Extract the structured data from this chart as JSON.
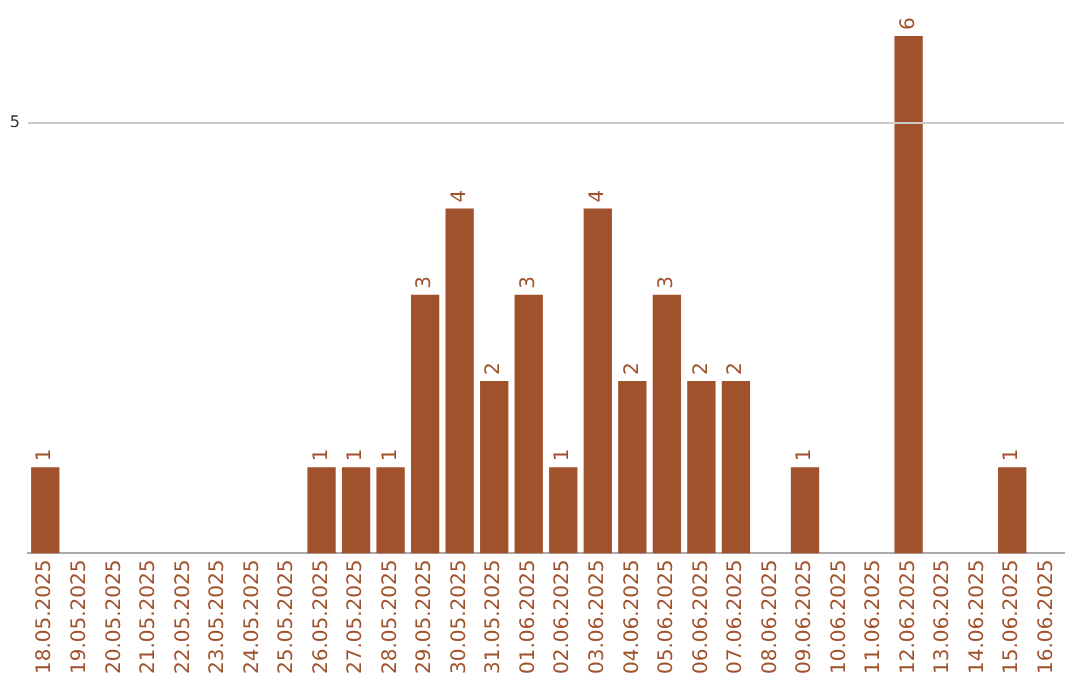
{
  "chart_data": {
    "type": "bar",
    "categories": [
      "18.05.2025",
      "19.05.2025",
      "20.05.2025",
      "21.05.2025",
      "22.05.2025",
      "23.05.2025",
      "24.05.2025",
      "25.05.2025",
      "26.05.2025",
      "27.05.2025",
      "28.05.2025",
      "29.05.2025",
      "30.05.2025",
      "31.05.2025",
      "01.06.2025",
      "02.06.2025",
      "03.06.2025",
      "04.06.2025",
      "05.06.2025",
      "06.06.2025",
      "07.06.2025",
      "08.06.2025",
      "09.06.2025",
      "10.06.2025",
      "11.06.2025",
      "12.06.2025",
      "13.06.2025",
      "14.06.2025",
      "15.06.2025",
      "16.06.2025"
    ],
    "values": [
      1,
      0,
      0,
      0,
      0,
      0,
      0,
      0,
      1,
      1,
      1,
      3,
      4,
      2,
      3,
      1,
      4,
      2,
      3,
      2,
      2,
      0,
      1,
      0,
      0,
      6,
      0,
      0,
      1,
      0
    ],
    "value_labels": [
      "1",
      null,
      null,
      null,
      null,
      null,
      null,
      null,
      "1",
      "1",
      "1",
      "3",
      "4",
      "2",
      "3",
      "1",
      "4",
      "2",
      "3",
      "2",
      "2",
      null,
      "1",
      null,
      null,
      "6",
      null,
      null,
      "1",
      null
    ],
    "color": "#a0522d",
    "ref_lines": [
      {
        "axis": "y",
        "value": 5,
        "label": "5",
        "color": "#cccccc"
      }
    ]
  }
}
